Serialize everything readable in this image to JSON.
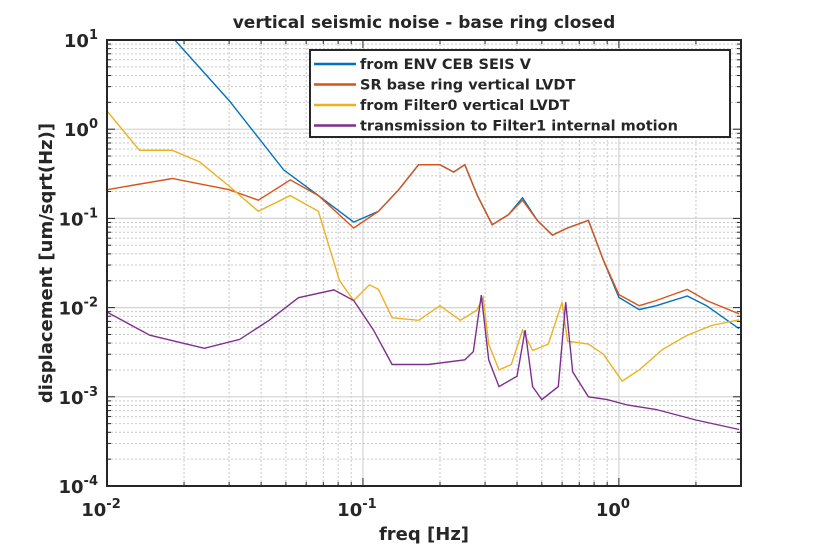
{
  "chart_data": {
    "type": "line",
    "title": "vertical seismic noise - base ring closed",
    "xlabel": "freq [Hz]",
    "ylabel": "displacement [um/sqrt(Hz)]",
    "xscale": "log",
    "yscale": "log",
    "xlim": [
      0.01,
      3
    ],
    "ylim": [
      0.0001,
      10
    ],
    "grid": true,
    "legend_placement": "top-right",
    "xticks": [
      {
        "base": "10",
        "exp": "-2"
      },
      {
        "base": "10",
        "exp": "-1"
      },
      {
        "base": "10",
        "exp": "0"
      }
    ],
    "yticks": [
      {
        "base": "10",
        "exp": "1"
      },
      {
        "base": "10",
        "exp": "0"
      },
      {
        "base": "10",
        "exp": "-1"
      },
      {
        "base": "10",
        "exp": "-2"
      },
      {
        "base": "10",
        "exp": "-3"
      },
      {
        "base": "10",
        "exp": "-4"
      }
    ],
    "series": [
      {
        "name": "from ENV CEB SEIS V",
        "color": "#0072BD",
        "x": [
          0.0184,
          0.03,
          0.049,
          0.067,
          0.092,
          0.115,
          0.138,
          0.165,
          0.2,
          0.226,
          0.25,
          0.28,
          0.32,
          0.37,
          0.42,
          0.48,
          0.55,
          0.63,
          0.76,
          0.87,
          1.0,
          1.2,
          1.4,
          1.85,
          2.2,
          2.95
        ],
        "y": [
          10,
          2.1,
          0.35,
          0.18,
          0.091,
          0.12,
          0.21,
          0.4,
          0.4,
          0.33,
          0.4,
          0.18,
          0.085,
          0.11,
          0.17,
          0.095,
          0.065,
          0.078,
          0.095,
          0.034,
          0.013,
          0.0095,
          0.0105,
          0.0135,
          0.0105,
          0.0058
        ]
      },
      {
        "name": "SR base ring vertical LVDT",
        "color": "#D95319",
        "x": [
          0.01,
          0.018,
          0.03,
          0.039,
          0.052,
          0.067,
          0.092,
          0.115,
          0.138,
          0.165,
          0.2,
          0.226,
          0.25,
          0.28,
          0.32,
          0.37,
          0.42,
          0.48,
          0.55,
          0.63,
          0.76,
          0.87,
          1.0,
          1.2,
          1.4,
          1.85,
          2.2,
          2.95
        ],
        "y": [
          0.21,
          0.28,
          0.21,
          0.16,
          0.27,
          0.18,
          0.078,
          0.12,
          0.21,
          0.4,
          0.4,
          0.33,
          0.4,
          0.18,
          0.085,
          0.11,
          0.16,
          0.095,
          0.065,
          0.078,
          0.095,
          0.034,
          0.014,
          0.0105,
          0.012,
          0.016,
          0.012,
          0.0085
        ]
      },
      {
        "name": "from Filter0 vertical LVDT",
        "color": "#EDB120",
        "x": [
          0.01,
          0.0134,
          0.018,
          0.023,
          0.03,
          0.039,
          0.052,
          0.067,
          0.081,
          0.092,
          0.106,
          0.115,
          0.13,
          0.165,
          0.2,
          0.24,
          0.278,
          0.295,
          0.31,
          0.34,
          0.38,
          0.42,
          0.46,
          0.53,
          0.6,
          0.63,
          0.76,
          0.87,
          1.03,
          1.2,
          1.48,
          1.85,
          2.3,
          2.95
        ],
        "y": [
          1.6,
          0.58,
          0.58,
          0.43,
          0.23,
          0.12,
          0.18,
          0.12,
          0.02,
          0.012,
          0.018,
          0.016,
          0.0077,
          0.0072,
          0.0105,
          0.0072,
          0.0093,
          0.013,
          0.0039,
          0.002,
          0.0023,
          0.0056,
          0.0033,
          0.0039,
          0.0115,
          0.0042,
          0.0039,
          0.003,
          0.0015,
          0.002,
          0.0034,
          0.0049,
          0.0063,
          0.0073
        ]
      },
      {
        "name": "transmission to Filter1 internal motion",
        "color": "#7E2F8E",
        "x": [
          0.01,
          0.0147,
          0.024,
          0.033,
          0.043,
          0.056,
          0.077,
          0.092,
          0.11,
          0.13,
          0.18,
          0.25,
          0.27,
          0.29,
          0.31,
          0.34,
          0.4,
          0.43,
          0.46,
          0.5,
          0.58,
          0.62,
          0.66,
          0.76,
          0.9,
          1.08,
          1.4,
          2.0,
          2.95
        ],
        "y": [
          0.0089,
          0.0049,
          0.0035,
          0.0044,
          0.0072,
          0.0129,
          0.0158,
          0.012,
          0.0056,
          0.0023,
          0.0023,
          0.0026,
          0.0032,
          0.0138,
          0.0026,
          0.0013,
          0.0017,
          0.0056,
          0.0013,
          0.00093,
          0.0013,
          0.0115,
          0.0019,
          0.001,
          0.00093,
          0.00081,
          0.00072,
          0.00055,
          0.00043
        ]
      }
    ]
  }
}
